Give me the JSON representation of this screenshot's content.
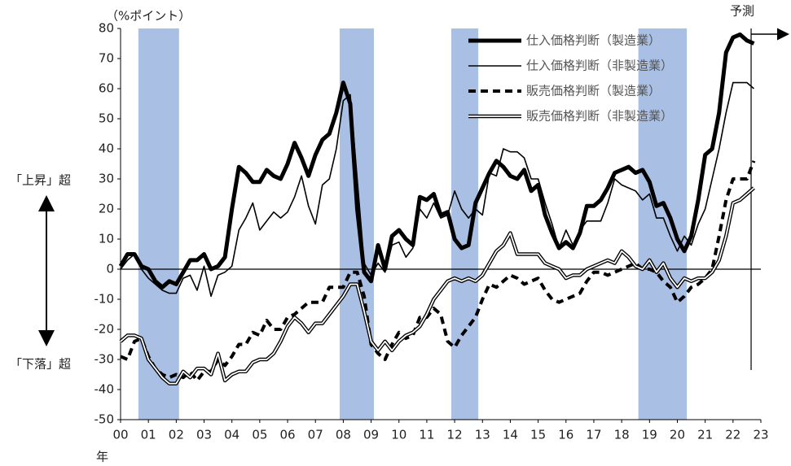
{
  "chart_data": {
    "type": "line",
    "y_unit_label": "（%ポイント）",
    "forecast_label": "予測",
    "up_label": "「上昇」超",
    "down_label": "「下落」超",
    "x_unit_label": "年",
    "xlim": [
      0,
      23
    ],
    "xticks": [
      {
        "value": 0,
        "label": "00"
      },
      {
        "value": 1,
        "label": "01"
      },
      {
        "value": 2,
        "label": "02"
      },
      {
        "value": 3,
        "label": "03"
      },
      {
        "value": 4,
        "label": "04"
      },
      {
        "value": 5,
        "label": "05"
      },
      {
        "value": 6,
        "label": "06"
      },
      {
        "value": 7,
        "label": "07"
      },
      {
        "value": 8,
        "label": "08"
      },
      {
        "value": 9,
        "label": "09"
      },
      10,
      11,
      12,
      13,
      14,
      15,
      16,
      17,
      18,
      19,
      20,
      21,
      22,
      23
    ],
    "ylim": [
      -50,
      80
    ],
    "yticks": [
      -50,
      -40,
      -30,
      -20,
      -10,
      0,
      10,
      20,
      30,
      40,
      50,
      60,
      70,
      80
    ],
    "recession_bands": [
      [
        0.64,
        2.1
      ],
      [
        7.87,
        9.1
      ],
      [
        11.88,
        12.85
      ],
      [
        18.6,
        20.34
      ]
    ],
    "band_color": "#a9bfe3",
    "forecast_start": 22.65,
    "x": [
      0,
      0.25,
      0.5,
      0.75,
      1,
      1.25,
      1.5,
      1.75,
      2,
      2.25,
      2.5,
      2.75,
      3,
      3.25,
      3.5,
      3.75,
      4,
      4.25,
      4.5,
      4.75,
      5,
      5.25,
      5.5,
      5.75,
      6,
      6.25,
      6.5,
      6.75,
      7,
      7.25,
      7.5,
      7.75,
      8,
      8.25,
      8.5,
      8.75,
      9,
      9.25,
      9.5,
      9.75,
      10,
      10.25,
      10.5,
      10.75,
      11,
      11.25,
      11.5,
      11.75,
      12,
      12.25,
      12.5,
      12.75,
      13,
      13.25,
      13.5,
      13.75,
      14,
      14.25,
      14.5,
      14.75,
      15,
      15.25,
      15.5,
      15.75,
      16,
      16.25,
      16.5,
      16.75,
      17,
      17.25,
      17.5,
      17.75,
      18,
      18.25,
      18.5,
      18.75,
      19,
      19.25,
      19.5,
      19.75,
      20,
      20.25,
      20.5,
      20.75,
      21,
      21.25,
      21.5,
      21.75,
      22,
      22.25,
      22.5,
      22.75
    ],
    "series": [
      {
        "name": "仕入価格判断（製造業）",
        "color": "#000000",
        "style": "thick",
        "values": [
          1,
          5,
          5,
          1,
          0,
          -4,
          -6,
          -4,
          -5,
          -1,
          3,
          3,
          5,
          0,
          1,
          4,
          20,
          34,
          32,
          29,
          29,
          33,
          31,
          30,
          35,
          42,
          37,
          31,
          38,
          43,
          45,
          52,
          62,
          55,
          20,
          -1,
          -4,
          8,
          0,
          11,
          13,
          10,
          8,
          24,
          23,
          25,
          18,
          19,
          10,
          7,
          8,
          22,
          27,
          32,
          36,
          34,
          31,
          30,
          33,
          26,
          28,
          18,
          12,
          7,
          9,
          7,
          12,
          21,
          21,
          23,
          27,
          32,
          33,
          34,
          32,
          33,
          29,
          21,
          22,
          17,
          10,
          6,
          11,
          23,
          38,
          40,
          52,
          72,
          77,
          78,
          76,
          75
        ]
      },
      {
        "name": "仕入価格判断（非製造業）",
        "color": "#000000",
        "style": "thin",
        "values": [
          0,
          3,
          5,
          0,
          -3,
          -5,
          -7,
          -8,
          -8,
          -3,
          -2,
          -7,
          1,
          -9,
          -2,
          -1,
          1,
          13,
          17,
          22,
          13,
          16,
          19,
          17,
          19,
          24,
          31,
          21,
          15,
          28,
          30,
          40,
          56,
          58,
          30,
          2,
          -2,
          2,
          -1,
          8,
          9,
          4,
          7,
          20,
          17,
          22,
          17,
          18,
          26,
          20,
          17,
          20,
          18,
          32,
          31,
          40,
          39,
          39,
          37,
          30,
          30,
          22,
          15,
          7,
          13,
          8,
          13,
          16,
          16,
          16,
          22,
          30,
          28,
          27,
          26,
          23,
          25,
          17,
          17,
          11,
          6,
          11,
          8,
          15,
          20,
          30,
          40,
          52,
          62,
          62,
          62,
          60
        ]
      },
      {
        "name": "販売価格判断（製造業）",
        "color": "#000000",
        "style": "dashed",
        "values": [
          -29,
          -30,
          -24,
          -23,
          -29,
          -33,
          -35,
          -36,
          -35,
          -36,
          -34,
          -37,
          -34,
          -34,
          -30,
          -32,
          -29,
          -25,
          -25,
          -21,
          -22,
          -17,
          -20,
          -20,
          -16,
          -15,
          -13,
          -11,
          -11,
          -11,
          -6,
          -6,
          -6,
          -1,
          -1,
          -9,
          -25,
          -28,
          -30,
          -25,
          -21,
          -23,
          -22,
          -16,
          -16,
          -13,
          -15,
          -24,
          -26,
          -22,
          -19,
          -16,
          -10,
          -5,
          -6,
          -4,
          -2,
          -3,
          -5,
          -4,
          -3,
          -7,
          -10,
          -11,
          -10,
          -9,
          -8,
          -4,
          -1,
          -1,
          -2,
          -1,
          0,
          1,
          2,
          0,
          0,
          -1,
          -4,
          -6,
          -11,
          -9,
          -6,
          -5,
          -3,
          0,
          11,
          23,
          30,
          30,
          30,
          36
        ]
      },
      {
        "name": "販売価格判断（非製造業）",
        "color": "#000000",
        "style": "double",
        "values": [
          -24,
          -22,
          -22,
          -23,
          -30,
          -33,
          -36,
          -38,
          -38,
          -34,
          -36,
          -33,
          -33,
          -35,
          -28,
          -37,
          -35,
          -34,
          -34,
          -31,
          -30,
          -30,
          -28,
          -24,
          -19,
          -16,
          -18,
          -21,
          -18,
          -18,
          -15,
          -12,
          -9,
          -5,
          -5,
          -14,
          -24,
          -27,
          -24,
          -27,
          -24,
          -22,
          -21,
          -19,
          -15,
          -10,
          -7,
          -4,
          -3,
          -4,
          -3,
          -4,
          -2,
          2,
          6,
          8,
          12,
          5,
          5,
          5,
          5,
          2,
          1,
          0,
          -3,
          -2,
          -2,
          0,
          1,
          2,
          3,
          2,
          6,
          4,
          1,
          0,
          3,
          -1,
          2,
          -3,
          -6,
          -3,
          -4,
          -3,
          -3,
          -1,
          3,
          11,
          22,
          23,
          25,
          27
        ]
      }
    ]
  }
}
